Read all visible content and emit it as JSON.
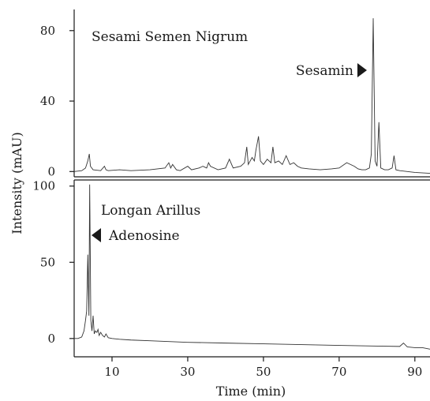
{
  "chart_data": [
    {
      "type": "line",
      "panel": "top",
      "title": "Sesami Semen Nigrum",
      "ylabel": "Intensity (mAU)",
      "ylim": [
        -3,
        92
      ],
      "yticks": [
        0,
        40,
        80
      ],
      "xlim": [
        0,
        94
      ],
      "annotation": {
        "label": "Sesamin",
        "x": 79,
        "y": 87,
        "arrow": "right"
      },
      "series": [
        {
          "x": [
            0,
            2,
            3,
            3.6,
            4,
            4.3,
            5,
            7,
            8,
            8.4,
            9,
            12,
            15,
            20,
            24,
            25,
            25.5,
            26,
            27,
            28,
            30,
            31,
            33,
            34,
            35,
            35.5,
            36,
            38,
            40,
            41,
            42,
            44,
            45,
            45.6,
            46,
            47,
            47.6,
            48,
            48.7,
            49.2,
            50,
            51,
            52,
            52.5,
            53,
            54,
            55,
            56,
            57,
            58,
            59,
            60,
            62,
            65,
            68,
            70,
            72,
            74,
            75,
            76,
            77,
            78,
            78.5,
            79,
            79.5,
            80,
            80.5,
            81,
            82,
            83,
            84,
            84.5,
            85,
            86,
            88,
            90,
            94
          ],
          "y": [
            0,
            0.5,
            2,
            6,
            10,
            3,
            1,
            0.5,
            3,
            1,
            0.5,
            1,
            0.5,
            1,
            2,
            5,
            2,
            4,
            1,
            0.5,
            3,
            1,
            2,
            3,
            2,
            5,
            3,
            1,
            2,
            7,
            2,
            3,
            5,
            14,
            4,
            8,
            6,
            12,
            20,
            6,
            4,
            7,
            5,
            14,
            5,
            6,
            4,
            9,
            4,
            5,
            3,
            2,
            1.5,
            1,
            1.5,
            2,
            5,
            3,
            1.5,
            1,
            1,
            2,
            10,
            87,
            6,
            3,
            28,
            2,
            1,
            1,
            2,
            9,
            1,
            0.5,
            0,
            -0.5,
            -1
          ]
        }
      ]
    },
    {
      "type": "line",
      "panel": "bottom",
      "title": "Longan Arillus",
      "xlabel": "Time (min)",
      "ylim": [
        -12,
        104
      ],
      "yticks": [
        0,
        50,
        100
      ],
      "xlim": [
        0,
        94
      ],
      "xticks": [
        10,
        30,
        50,
        70,
        90
      ],
      "annotation": {
        "label": "Adenosine",
        "x": 4.4,
        "y": 101,
        "arrow": "left"
      },
      "series": [
        {
          "x": [
            0,
            1,
            2,
            2.6,
            3,
            3.3,
            3.6,
            3.9,
            4.1,
            4.4,
            4.7,
            5,
            5.3,
            5.6,
            6,
            6.3,
            6.6,
            7,
            7.5,
            8,
            8.4,
            9,
            10,
            12,
            15,
            20,
            25,
            30,
            40,
            50,
            60,
            70,
            80,
            86,
            87,
            88,
            90,
            92,
            94
          ],
          "y": [
            0,
            0,
            1,
            5,
            12,
            18,
            55,
            15,
            101,
            12,
            5,
            15,
            3,
            5,
            4,
            6,
            2,
            4,
            2,
            1,
            3,
            0.5,
            0,
            -0.5,
            -1,
            -1.5,
            -2,
            -2.5,
            -3,
            -3.5,
            -4,
            -4.5,
            -5,
            -5.2,
            -3,
            -5.5,
            -6,
            -6,
            -7
          ]
        }
      ]
    }
  ]
}
